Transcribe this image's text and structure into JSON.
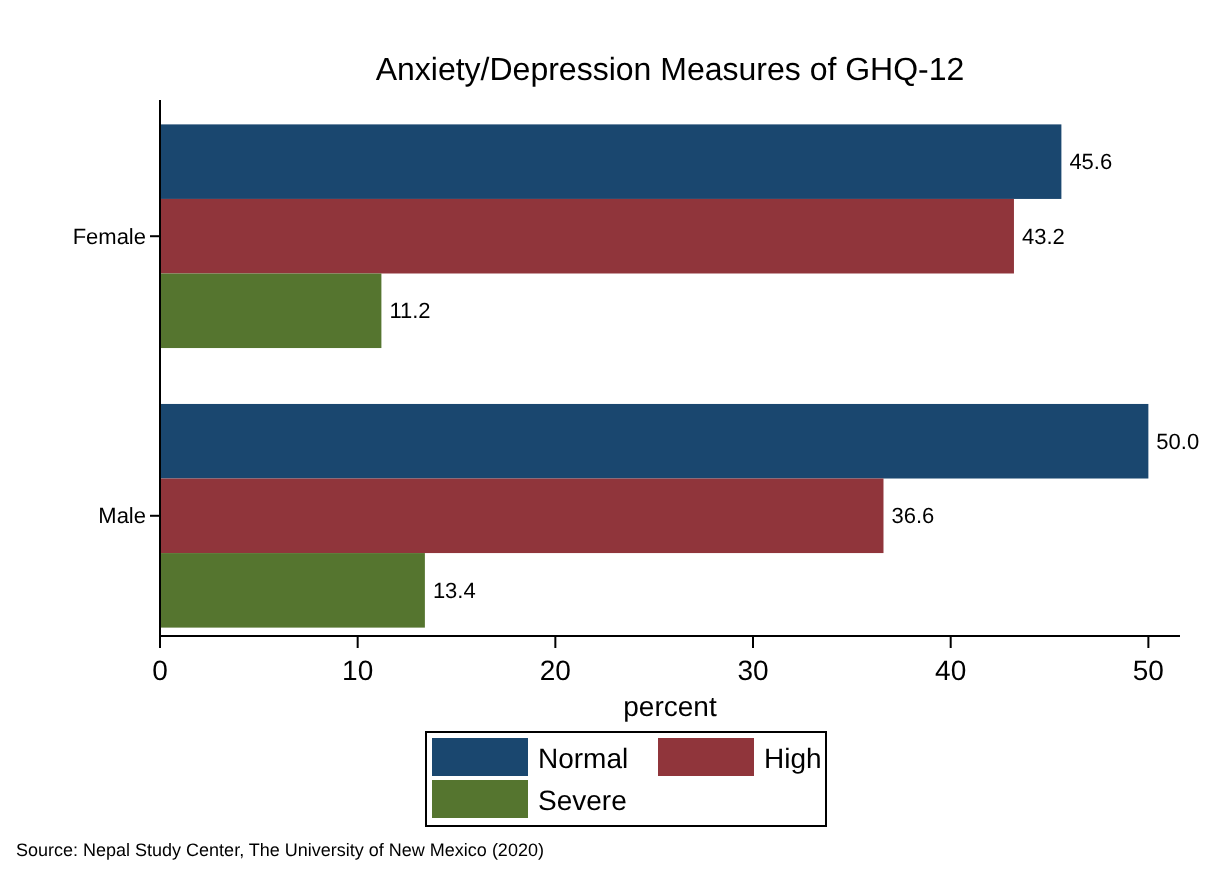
{
  "chart_data": {
    "type": "bar",
    "orientation": "horizontal",
    "title": "Anxiety/Depression Measures of GHQ-12",
    "xlabel": "percent",
    "categories": [
      "Female",
      "Male"
    ],
    "series": [
      {
        "name": "Normal",
        "color": "#1a476f",
        "values": [
          45.6,
          50.0
        ]
      },
      {
        "name": "High",
        "color": "#90353b",
        "values": [
          43.2,
          36.6
        ]
      },
      {
        "name": "Severe",
        "color": "#55752f",
        "values": [
          11.2,
          13.4
        ]
      }
    ],
    "value_labels": [
      [
        "45.6",
        "50.0"
      ],
      [
        "43.2",
        "36.6"
      ],
      [
        "11.2",
        "13.4"
      ]
    ],
    "xlim": [
      0,
      51.6
    ],
    "xticks": [
      0,
      10,
      20,
      30,
      40,
      50
    ],
    "grid": false,
    "legend": "bottom",
    "annotations": [
      "Source: Nepal Study Center, The University of New Mexico (2020)"
    ]
  }
}
